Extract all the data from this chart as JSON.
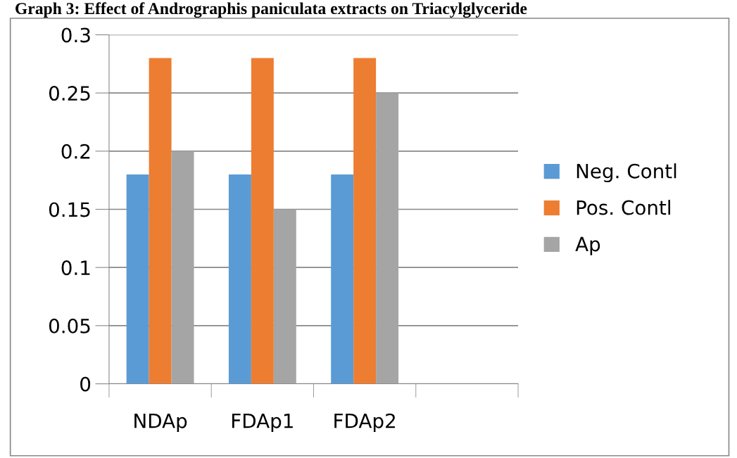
{
  "chart_data": {
    "type": "bar",
    "title": "Graph 3: Effect of Andrographis paniculata extracts on Triacylglyceride",
    "categories": [
      "NDAp",
      "FDAp1",
      "FDAp2",
      null
    ],
    "series": [
      {
        "name": "Neg. Contl",
        "color": "#5b9bd5",
        "values": [
          0.18,
          0.18,
          0.18,
          null
        ]
      },
      {
        "name": "Pos. Contl",
        "color": "#ed7d31",
        "values": [
          0.28,
          0.28,
          0.28,
          null
        ]
      },
      {
        "name": "Ap",
        "color": "#a5a5a5",
        "values": [
          0.2,
          0.15,
          0.25,
          null
        ]
      }
    ],
    "ylim": [
      0,
      0.3
    ],
    "yticks": [
      0,
      0.05,
      0.1,
      0.15,
      0.2,
      0.25,
      0.3
    ],
    "grid": "y",
    "legend": "right"
  }
}
